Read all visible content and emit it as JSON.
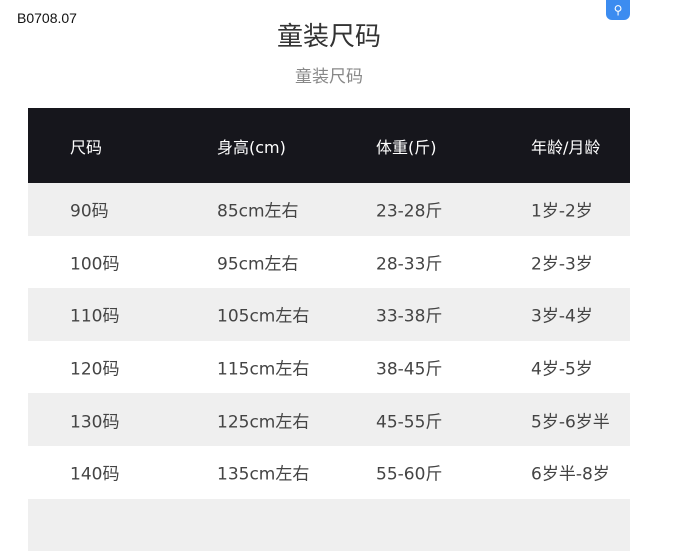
{
  "code": "B0708.07",
  "title": "童装尺码",
  "subtitle": "童装尺码",
  "scan_icon": "scan-search-icon",
  "table": {
    "headers": [
      "尺码",
      "身高(cm)",
      "体重(斤)",
      "年龄/月龄"
    ],
    "rows": [
      [
        "90码",
        "85cm左右",
        "23-28斤",
        "1岁-2岁"
      ],
      [
        "100码",
        "95cm左右",
        "28-33斤",
        "2岁-3岁"
      ],
      [
        "110码",
        "105cm左右",
        "33-38斤",
        "3岁-4岁"
      ],
      [
        "120码",
        "115cm左右",
        "38-45斤",
        "4岁-5岁"
      ],
      [
        "130码",
        "125cm左右",
        "45-55斤",
        "5岁-6岁半"
      ],
      [
        "140码",
        "135cm左右",
        "55-60斤",
        "6岁半-8岁"
      ]
    ]
  }
}
